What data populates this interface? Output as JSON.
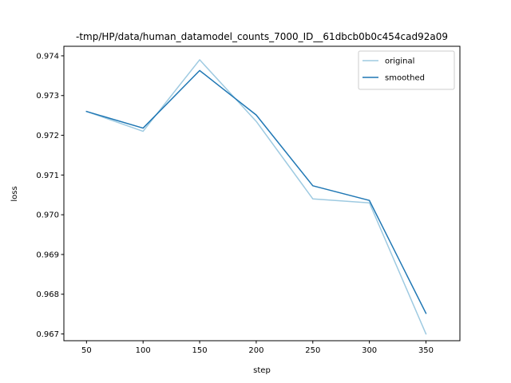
{
  "chart_data": {
    "type": "line",
    "title": "-tmp/HP/data/human_datamodel_counts_7000_ID__61dbcb0b0c454cad92a09",
    "xlabel": "step",
    "ylabel": "loss",
    "x": [
      50,
      100,
      150,
      200,
      250,
      300,
      350
    ],
    "xticks": [
      "50",
      "100",
      "150",
      "200",
      "250",
      "300",
      "350"
    ],
    "yticks": [
      "0.967",
      "0.968",
      "0.969",
      "0.970",
      "0.971",
      "0.972",
      "0.973",
      "0.974"
    ],
    "xlim": [
      30,
      380
    ],
    "ylim": [
      0.96683,
      0.97424
    ],
    "grid": false,
    "legend_position": "upper right",
    "series": [
      {
        "name": "original",
        "color": "#9ecae1",
        "values": [
          0.9726,
          0.9721,
          0.9739,
          0.97235,
          0.9704,
          0.9703,
          0.967
        ]
      },
      {
        "name": "smoothed",
        "color": "#1f77b4",
        "values": [
          0.9726,
          0.97218,
          0.97363,
          0.97251,
          0.97073,
          0.97036,
          0.96752
        ]
      }
    ]
  }
}
